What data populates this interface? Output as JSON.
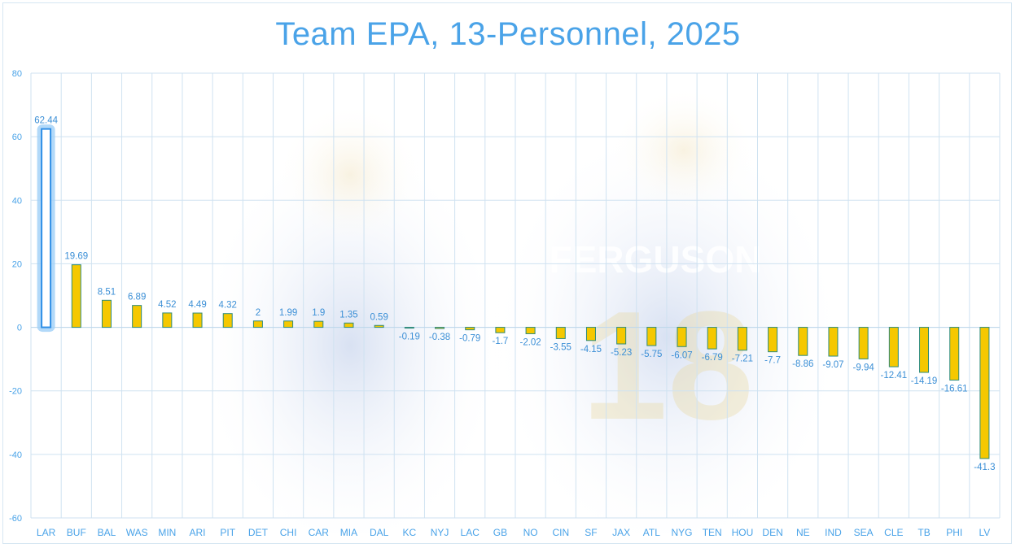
{
  "chart_data": {
    "type": "bar",
    "title": "Team EPA, 13-Personnel, 2025",
    "xlabel": "",
    "ylabel": "",
    "ylim": [
      -60,
      80
    ],
    "yticks": [
      80,
      60,
      40,
      20,
      0,
      -20,
      -40,
      -60
    ],
    "grid": true,
    "categories": [
      "LAR",
      "BUF",
      "BAL",
      "WAS",
      "MIN",
      "ARI",
      "PIT",
      "DET",
      "CHI",
      "CAR",
      "MIA",
      "DAL",
      "KC",
      "NYJ",
      "LAC",
      "GB",
      "NO",
      "CIN",
      "SF",
      "JAX",
      "ATL",
      "NYG",
      "TEN",
      "HOU",
      "DEN",
      "NE",
      "IND",
      "SEA",
      "CLE",
      "TB",
      "PHI",
      "LV"
    ],
    "values": [
      62.44,
      19.69,
      8.51,
      6.89,
      4.52,
      4.49,
      4.32,
      2,
      1.99,
      1.9,
      1.35,
      0.59,
      -0.19,
      -0.38,
      -0.79,
      -1.7,
      -2.02,
      -3.55,
      -4.15,
      -5.23,
      -5.75,
      -6.07,
      -6.79,
      -7.21,
      -7.7,
      -8.86,
      -9.07,
      -9.94,
      -12.41,
      -14.19,
      -16.61,
      -41.3
    ],
    "highlight": "LAR",
    "colors": {
      "bar_fill": "#f5c800",
      "bar_stroke": "#2e8b7a",
      "highlight_fill": "#ffffff",
      "highlight_stroke": "#2f8fe6",
      "text": "#4aa3e8",
      "grid": "#cfe2f1"
    }
  },
  "background": {
    "image": "faded-player-photo",
    "jersey_text": "FERGUSON",
    "jersey_number": "18"
  }
}
